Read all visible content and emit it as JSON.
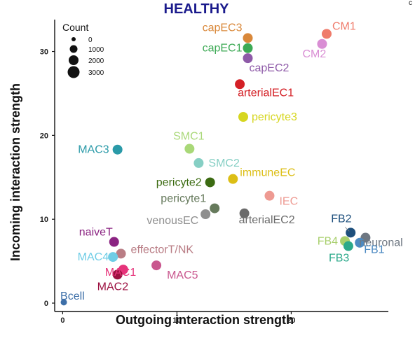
{
  "chart_data": {
    "type": "scatter",
    "title": "HEALTHY",
    "xlabel": "Outgoing interaction strength",
    "ylabel": "Incoming interaction strength",
    "xlim": [
      -0.7,
      28.5
    ],
    "ylim": [
      -1.0,
      33.8
    ],
    "xticks": [
      0,
      10,
      20
    ],
    "yticks": [
      0,
      10,
      20,
      30
    ],
    "legend": {
      "title": "Count",
      "position": "top-left",
      "sizes": [
        {
          "label": "0",
          "value": 0
        },
        {
          "label": "1000",
          "value": 1000
        },
        {
          "label": "2000",
          "value": 2000
        },
        {
          "label": "3000",
          "value": 3000
        }
      ]
    },
    "corner_text": "c",
    "points": [
      {
        "label": "capEC3",
        "x": 16.2,
        "y": 31.6,
        "color": "#d9883a"
      },
      {
        "label": "capEC1",
        "x": 16.2,
        "y": 30.4,
        "color": "#3daa55"
      },
      {
        "label": "capEC2",
        "x": 16.2,
        "y": 29.2,
        "color": "#8e5aa8"
      },
      {
        "label": "CM1",
        "x": 23.1,
        "y": 32.1,
        "color": "#ef7b6b"
      },
      {
        "label": "CM2",
        "x": 22.7,
        "y": 30.9,
        "color": "#d98ed4"
      },
      {
        "label": "arterialEC1",
        "x": 15.5,
        "y": 26.1,
        "color": "#d42026"
      },
      {
        "label": "pericyte3",
        "x": 15.8,
        "y": 22.2,
        "color": "#d6d620"
      },
      {
        "label": "MAC3",
        "x": 4.8,
        "y": 18.3,
        "color": "#2a9aa8"
      },
      {
        "label": "SMC1",
        "x": 11.1,
        "y": 18.4,
        "color": "#a9d878"
      },
      {
        "label": "SMC2",
        "x": 11.9,
        "y": 16.7,
        "color": "#86cfc4"
      },
      {
        "label": "immuneEC",
        "x": 14.9,
        "y": 14.8,
        "color": "#dcbe15"
      },
      {
        "label": "pericyte2",
        "x": 12.9,
        "y": 14.4,
        "color": "#3c6b12"
      },
      {
        "label": "IEC",
        "x": 18.1,
        "y": 12.8,
        "color": "#ee9a92"
      },
      {
        "label": "pericyte1",
        "x": 13.3,
        "y": 11.3,
        "color": "#667a5c"
      },
      {
        "label": "venousEC",
        "x": 12.5,
        "y": 10.6,
        "color": "#8f8f8f"
      },
      {
        "label": "arterialEC2",
        "x": 15.9,
        "y": 10.7,
        "color": "#6b6b6b"
      },
      {
        "label": "FB2",
        "x": 25.2,
        "y": 8.4,
        "color": "#1d4f7c"
      },
      {
        "label": "neuronal",
        "x": 26.5,
        "y": 7.8,
        "color": "#6e7782"
      },
      {
        "label": "FB4",
        "x": 24.7,
        "y": 7.4,
        "color": "#a8cf6c"
      },
      {
        "label": "FB3",
        "x": 25.0,
        "y": 6.8,
        "color": "#2ba98a"
      },
      {
        "label": "FB1",
        "x": 26.0,
        "y": 7.2,
        "color": "#4c8ac2"
      },
      {
        "label": "naiveT",
        "x": 4.5,
        "y": 7.3,
        "color": "#8b2482"
      },
      {
        "label": "effectorT/NK",
        "x": 5.1,
        "y": 5.9,
        "color": "#b97d85"
      },
      {
        "label": "MAC4",
        "x": 4.4,
        "y": 5.5,
        "color": "#6fcde6"
      },
      {
        "label": "MAC1",
        "x": 5.3,
        "y": 4.0,
        "color": "#e6337a"
      },
      {
        "label": "MAC5",
        "x": 8.2,
        "y": 4.5,
        "color": "#c9578e"
      },
      {
        "label": "MAC2",
        "x": 4.8,
        "y": 3.4,
        "color": "#9c1040"
      },
      {
        "label": "Bcell",
        "x": 0.1,
        "y": 0.1,
        "color": "#3d6fa8"
      }
    ]
  }
}
